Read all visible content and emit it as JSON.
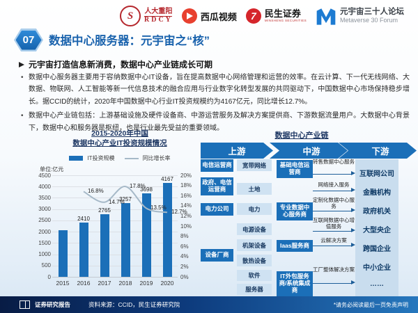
{
  "header": {
    "logos": {
      "rdcy": {
        "cn": "人大重阳",
        "en": "RDCY",
        "seal_glyph": "S"
      },
      "xigua": {
        "label": "西瓜视频"
      },
      "minsheng": {
        "label": "民生证券",
        "sub": "MINSHENG SECURITIES",
        "glyph": "7"
      },
      "metaverse": {
        "cn": "元宇宙三十人论坛",
        "en": "Metaverse 30 Forum"
      }
    },
    "page_number": "07",
    "title": "数据中心服务器：元宇宙之“核”"
  },
  "summary": {
    "heading": "元宇宙打造信息新消费，数据中心产业链成长可期",
    "bullets": [
      "数据中心服务器主要用于容纳数据中心IT设备，旨在提高数据中心网络管理和运营的效率。在云计算、下一代无线网络、大数据、物联网、人工智能等新一代信息技术的融合应用与行业数字化转型发展的共同驱动下，中国数据中心市场保持稳步增长。据CCID的统计，2020年中国数据中心行业IT投资规模约为4167亿元，同比增长12.7%。",
      "数据中心产业链包括：上游基础设施及硬件设备商、中游运营服务及解决方案提供商、下游数据流量用户。大数据中心背景下，数据中心和服务器是枢纽，也是行业最先受益的重要领域。"
    ]
  },
  "chart_data": {
    "type": "bar",
    "title_line1": "2015-2020年中国",
    "title_line2": "数据中心产业IT投资规模情况",
    "unit_label": "单位:亿元",
    "categories": [
      "2015",
      "2016",
      "2017",
      "2018",
      "2019",
      "2020"
    ],
    "series": [
      {
        "name": "IT投资规模",
        "type": "bar",
        "color": "#1b6fb8",
        "values": [
          2064,
          2410,
          2765,
          3257,
          3698,
          4167
        ],
        "labels": [
          "",
          "2410",
          "2765",
          "3257",
          "3698",
          "4167"
        ]
      },
      {
        "name": "同比增长率",
        "type": "line",
        "color": "#a6b9c8",
        "values": [
          null,
          16.8,
          14.7,
          17.8,
          13.5,
          12.7
        ],
        "labels": [
          "",
          "16.8%",
          "14.7%",
          "17.8%",
          "13.5%",
          "12.7%"
        ]
      }
    ],
    "left_axis": {
      "min": 0,
      "max": 4500,
      "step": 500
    },
    "right_axis": {
      "min": 0,
      "max": 20,
      "step": 2,
      "suffix": "%"
    },
    "grid": true,
    "legend_position": "top"
  },
  "chain": {
    "title": "数据中心产业链",
    "stages": [
      "上游",
      "中游",
      "下游"
    ],
    "upstream_left": [
      "电信运营商",
      "政府、电信运营商",
      "电力公司",
      "设备厂商"
    ],
    "upstream_right": [
      "宽带网络",
      "土地",
      "电力",
      "电源设备",
      "机架设备",
      "散热设备",
      "软件",
      "服务器"
    ],
    "midstream": [
      "基础电信运营商",
      "专业数据中心服务商",
      "Iaas服务商",
      "IT外包服务商/系统集成商"
    ],
    "services": [
      "转售数据中心服务",
      "网络接入服务",
      "定制化数据中心服务",
      "互联网数据中心增值服务",
      "云解决方案",
      "工厂整体解决方案"
    ],
    "downstream": [
      "互联网公司",
      "金融机构",
      "政府机关",
      "大型央企",
      "跨国企业",
      "中小企业",
      "……"
    ]
  },
  "footer": {
    "report_label": "证券研究报告",
    "source": "资料来源：CCID，民生证券研究院",
    "disclaimer": "*请务必阅读最后一页免责声明"
  },
  "colors": {
    "primary_blue": "#1b6fb8",
    "title_blue": "#1a63ad",
    "bar": "#1b6fb8",
    "growth_line": "#a6b9c8",
    "box_dark": "#1b6fb8",
    "box_light": "#cfe2f2",
    "downstream_box": "#c9ddee",
    "footer_gradient_left": "#081c45",
    "footer_gradient_right": "#2677bd",
    "brand_red": "#c9262c"
  }
}
